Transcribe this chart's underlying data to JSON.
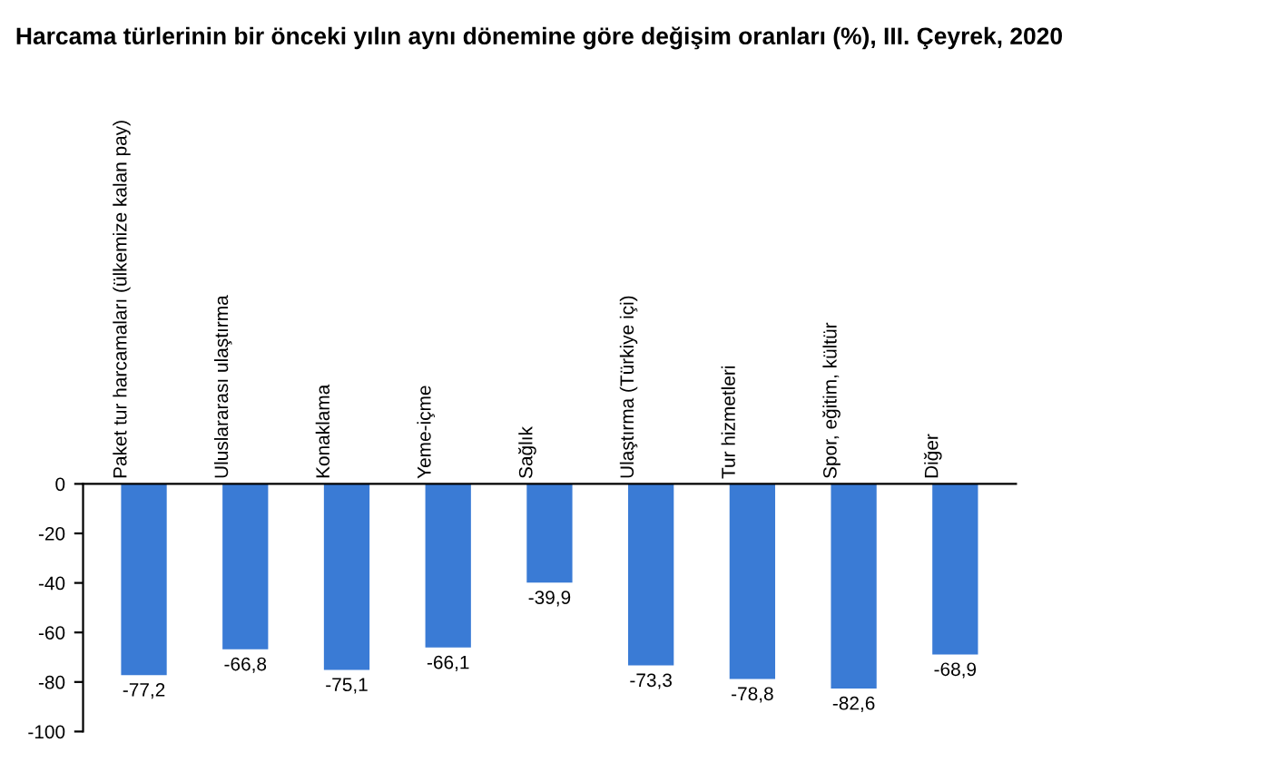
{
  "chart_data": {
    "type": "bar",
    "title": "Harcama türlerinin bir önceki yılın aynı dönemine göre değişim oranları (%), III. Çeyrek, 2020",
    "categories": [
      "Paket tur harcamaları (ülkemize kalan pay)",
      "Uluslararası ulaştırma",
      "Konaklama",
      "Yeme-içme",
      "Sağlık",
      "Ulaştırma (Türkiye içi)",
      "Tur hizmetleri",
      "Spor, eğitim, kültür",
      "Diğer"
    ],
    "values": [
      -77.2,
      -66.8,
      -75.1,
      -66.1,
      -39.9,
      -73.3,
      -78.8,
      -82.6,
      -68.9
    ],
    "value_labels": [
      "-77,2",
      "-66,8",
      "-75,1",
      "-66,1",
      "-39,9",
      "-73,3",
      "-78,8",
      "-82,6",
      "-68,9"
    ],
    "color": "#3a7bd5",
    "ylim": [
      -100,
      0
    ],
    "yticks": [
      -100,
      -80,
      -60,
      -40,
      -20,
      0
    ],
    "grid": false,
    "legend": false
  }
}
